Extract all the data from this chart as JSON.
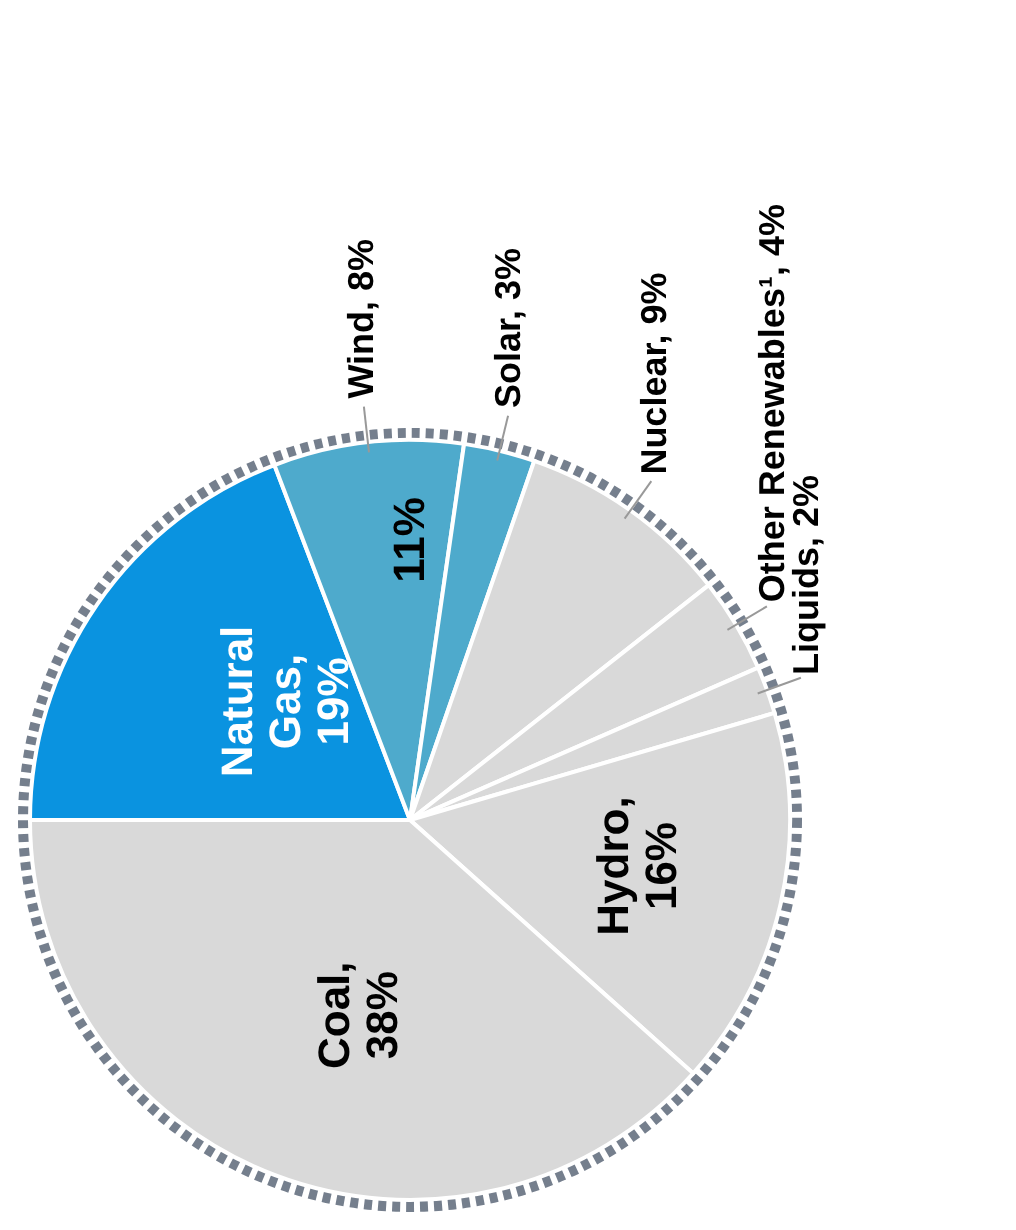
{
  "chart_data": {
    "type": "pie",
    "categories": [
      "Natural Gas",
      "Wind",
      "Solar",
      "Nuclear",
      "Other Renewables¹",
      "Liquids",
      "Hydro",
      "Coal"
    ],
    "values": [
      19,
      8,
      3,
      9,
      4,
      2,
      16,
      38
    ],
    "colors": [
      "#0a93e0",
      "#4eaacc",
      "#4eaacc",
      "#d9d9d9",
      "#d9d9d9",
      "#d9d9d9",
      "#d9d9d9",
      "#d9d9d9"
    ],
    "annotations": [
      "11%"
    ],
    "value_labels": [
      ", 19%",
      ", 8%",
      ", 3%",
      ", 9%",
      ", 4%",
      ", 2%",
      ", 16%",
      ", 38%"
    ]
  }
}
